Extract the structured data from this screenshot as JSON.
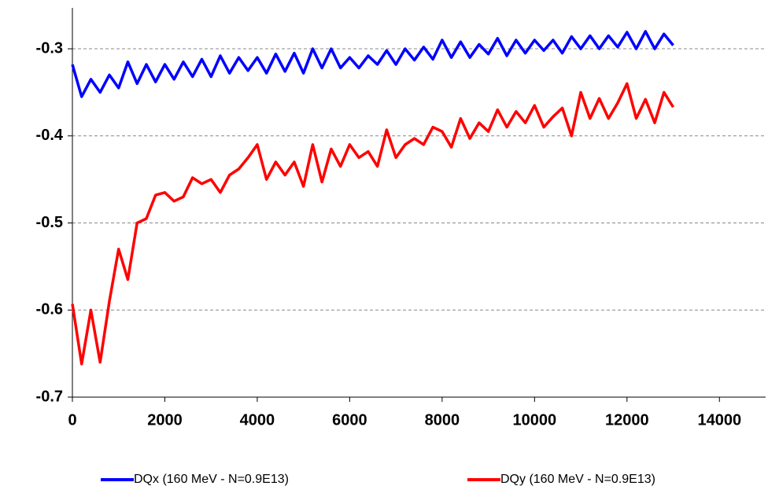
{
  "chart_data": {
    "type": "line",
    "x": [
      0,
      200,
      400,
      600,
      800,
      1000,
      1200,
      1400,
      1600,
      1800,
      2000,
      2200,
      2400,
      2600,
      2800,
      3000,
      3200,
      3400,
      3600,
      3800,
      4000,
      4200,
      4400,
      4600,
      4800,
      5000,
      5200,
      5400,
      5600,
      5800,
      6000,
      6200,
      6400,
      6600,
      6800,
      7000,
      7200,
      7400,
      7600,
      7800,
      8000,
      8200,
      8400,
      8600,
      8800,
      9000,
      9200,
      9400,
      9600,
      9800,
      10000,
      10200,
      10400,
      10600,
      10800,
      11000,
      11200,
      11400,
      11600,
      11800,
      12000,
      12200,
      12400,
      12600,
      12800,
      13000
    ],
    "series": [
      {
        "name": "DQx (160 MeV - N=0.9E13)",
        "color": "#0000ff",
        "values": [
          -0.318,
          -0.355,
          -0.335,
          -0.35,
          -0.33,
          -0.345,
          -0.315,
          -0.34,
          -0.318,
          -0.338,
          -0.318,
          -0.335,
          -0.315,
          -0.332,
          -0.312,
          -0.332,
          -0.308,
          -0.328,
          -0.31,
          -0.325,
          -0.31,
          -0.328,
          -0.306,
          -0.326,
          -0.305,
          -0.328,
          -0.3,
          -0.322,
          -0.3,
          -0.322,
          -0.31,
          -0.322,
          -0.308,
          -0.318,
          -0.302,
          -0.318,
          -0.3,
          -0.313,
          -0.298,
          -0.312,
          -0.29,
          -0.31,
          -0.292,
          -0.31,
          -0.295,
          -0.306,
          -0.288,
          -0.308,
          -0.29,
          -0.305,
          -0.29,
          -0.302,
          -0.29,
          -0.305,
          -0.286,
          -0.3,
          -0.285,
          -0.3,
          -0.285,
          -0.298,
          -0.281,
          -0.3,
          -0.28,
          -0.3,
          -0.283,
          -0.296
        ]
      },
      {
        "name": "DQy (160 MeV - N=0.9E13)",
        "color": "#ff0000",
        "values": [
          -0.593,
          -0.662,
          -0.6,
          -0.66,
          -0.59,
          -0.53,
          -0.565,
          -0.5,
          -0.495,
          -0.468,
          -0.465,
          -0.475,
          -0.47,
          -0.448,
          -0.455,
          -0.45,
          -0.465,
          -0.445,
          -0.438,
          -0.425,
          -0.41,
          -0.45,
          -0.43,
          -0.445,
          -0.43,
          -0.458,
          -0.41,
          -0.453,
          -0.415,
          -0.435,
          -0.41,
          -0.425,
          -0.418,
          -0.435,
          -0.393,
          -0.425,
          -0.41,
          -0.403,
          -0.41,
          -0.39,
          -0.395,
          -0.413,
          -0.38,
          -0.403,
          -0.385,
          -0.395,
          -0.37,
          -0.39,
          -0.372,
          -0.385,
          -0.365,
          -0.39,
          -0.378,
          -0.368,
          -0.4,
          -0.35,
          -0.38,
          -0.357,
          -0.38,
          -0.362,
          -0.34,
          -0.38,
          -0.358,
          -0.385,
          -0.35,
          -0.367
        ]
      }
    ],
    "xlim": [
      0,
      15000
    ],
    "xticks": [
      0,
      2000,
      4000,
      6000,
      8000,
      10000,
      12000,
      14000
    ],
    "ylim": [
      -0.7,
      -0.253
    ],
    "yticks": [
      -0.7,
      -0.6,
      -0.5,
      -0.4,
      -0.3
    ],
    "grid": true,
    "legend": "bottom"
  }
}
